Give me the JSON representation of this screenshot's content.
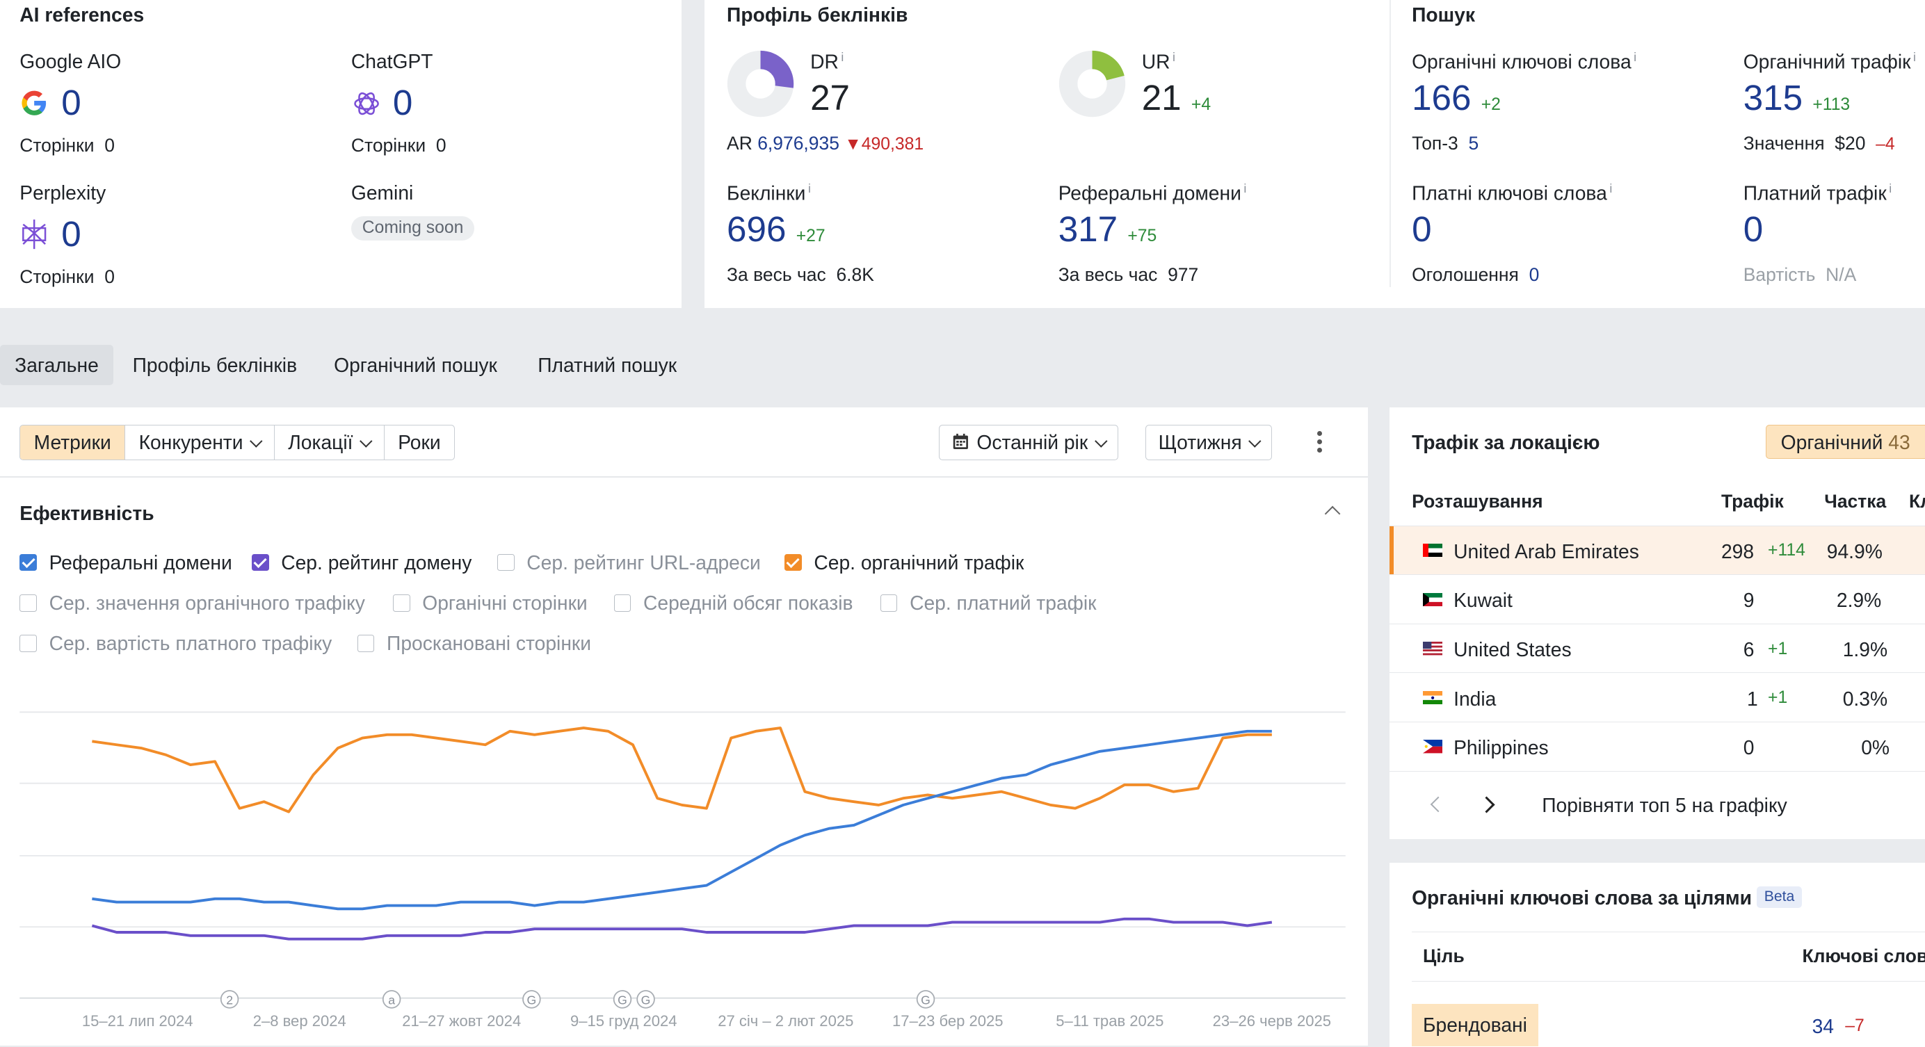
{
  "ai_references": {
    "title": "AI references",
    "google": {
      "label": "Google AIO",
      "value": "0",
      "pages_label": "Сторінки",
      "pages": "0"
    },
    "chatgpt": {
      "label": "ChatGPT",
      "value": "0",
      "pages_label": "Сторінки",
      "pages": "0"
    },
    "perplexity": {
      "label": "Perplexity",
      "value": "0",
      "pages_label": "Сторінки",
      "pages": "0"
    },
    "gemini": {
      "label": "Gemini",
      "badge": "Coming soon"
    }
  },
  "backlink_profile": {
    "title": "Профіль беклінків",
    "dr": {
      "label": "DR",
      "value": "27",
      "fraction": 0.27
    },
    "ur": {
      "label": "UR",
      "value": "21",
      "delta": "+4",
      "fraction": 0.21
    },
    "ar": {
      "label": "AR",
      "value": "6,976,935",
      "delta": "490,381"
    },
    "backlinks": {
      "label": "Беклінки",
      "value": "696",
      "delta": "+27",
      "all_time_label": "За весь час",
      "all_time": "6.8K"
    },
    "ref_domains": {
      "label": "Реферальні домени",
      "value": "317",
      "delta": "+75",
      "all_time_label": "За весь час",
      "all_time": "977"
    }
  },
  "search": {
    "title": "Пошук",
    "organic_kw": {
      "label": "Органічні ключові слова",
      "value": "166",
      "delta": "+2",
      "top3_label": "Топ-3",
      "top3": "5"
    },
    "organic_traffic": {
      "label": "Органічний трафік",
      "value": "315",
      "delta": "+113",
      "value_label": "Значення",
      "money": "$20",
      "money_delta": "–4"
    },
    "paid_kw": {
      "label": "Платні ключові слова",
      "value": "0",
      "ads_label": "Оголошення",
      "ads": "0"
    },
    "paid_traffic": {
      "label": "Платний трафік",
      "value": "0",
      "cost_label": "Вартість",
      "cost": "N/A"
    }
  },
  "tabs": [
    "Загальне",
    "Профіль беклінків",
    "Органічний пошук",
    "Платний пошук"
  ],
  "toolbar": {
    "segments": [
      "Метрики",
      "Конкуренти",
      "Локації",
      "Роки"
    ],
    "period": "Останній рік",
    "interval": "Щотижня"
  },
  "performance": {
    "title": "Ефективність",
    "checkboxes": [
      {
        "label": "Реферальні домени",
        "checked": true,
        "color": "#3b7dd8"
      },
      {
        "label": "Сер. рейтинг домену",
        "checked": true,
        "color": "#6a4fc9"
      },
      {
        "label": "Сер. рейтинг URL-адреси",
        "checked": false
      },
      {
        "label": "Сер. органічний трафік",
        "checked": true,
        "color": "#f28c28"
      },
      {
        "label": "Сер. значення органічного трафіку",
        "checked": false
      },
      {
        "label": "Органічні сторінки",
        "checked": false
      },
      {
        "label": "Середній обсяг показів",
        "checked": false
      },
      {
        "label": "Сер. платний трафік",
        "checked": false
      },
      {
        "label": "Сер. вартість платного трафіку",
        "checked": false
      },
      {
        "label": "Просканованi сторінки",
        "checked": false
      }
    ]
  },
  "chart_data": {
    "type": "line",
    "x_ticks": [
      "15–21 лип 2024",
      "2–8 вер 2024",
      "21–27 жовт 2024",
      "9–15 груд 2024",
      "27 січ – 2 лют 2025",
      "17–23 бер 2025",
      "5–11 трав 2025",
      "23–26 черв 2025"
    ],
    "annotations": [
      "2",
      "a",
      "G",
      "G",
      "G",
      "G"
    ],
    "series": [
      {
        "name": "Сер. органічний трафік",
        "color": "#f28c28",
        "values": [
          0.77,
          0.76,
          0.75,
          0.73,
          0.7,
          0.71,
          0.57,
          0.59,
          0.56,
          0.67,
          0.75,
          0.78,
          0.79,
          0.79,
          0.78,
          0.77,
          0.76,
          0.8,
          0.79,
          0.8,
          0.81,
          0.8,
          0.76,
          0.6,
          0.58,
          0.57,
          0.78,
          0.8,
          0.81,
          0.62,
          0.6,
          0.59,
          0.58,
          0.6,
          0.61,
          0.6,
          0.61,
          0.62,
          0.6,
          0.58,
          0.57,
          0.6,
          0.64,
          0.64,
          0.62,
          0.63,
          0.78,
          0.79,
          0.79
        ]
      },
      {
        "name": "Реферальні домени",
        "color": "#3b7dd8",
        "values": [
          0.3,
          0.29,
          0.29,
          0.29,
          0.29,
          0.3,
          0.3,
          0.29,
          0.29,
          0.28,
          0.27,
          0.27,
          0.28,
          0.28,
          0.28,
          0.29,
          0.29,
          0.29,
          0.28,
          0.29,
          0.29,
          0.3,
          0.31,
          0.32,
          0.33,
          0.34,
          0.38,
          0.42,
          0.46,
          0.49,
          0.51,
          0.52,
          0.55,
          0.58,
          0.6,
          0.62,
          0.64,
          0.66,
          0.67,
          0.7,
          0.72,
          0.74,
          0.75,
          0.76,
          0.77,
          0.78,
          0.79,
          0.8,
          0.8
        ]
      },
      {
        "name": "Сер. рейтинг домену",
        "color": "#6a4fc9",
        "values": [
          0.22,
          0.2,
          0.2,
          0.2,
          0.19,
          0.19,
          0.19,
          0.19,
          0.18,
          0.18,
          0.18,
          0.18,
          0.19,
          0.19,
          0.19,
          0.19,
          0.2,
          0.2,
          0.21,
          0.21,
          0.21,
          0.21,
          0.21,
          0.21,
          0.21,
          0.2,
          0.2,
          0.2,
          0.2,
          0.2,
          0.21,
          0.22,
          0.22,
          0.22,
          0.22,
          0.23,
          0.23,
          0.23,
          0.23,
          0.23,
          0.23,
          0.23,
          0.24,
          0.24,
          0.23,
          0.23,
          0.23,
          0.22,
          0.23
        ]
      }
    ]
  },
  "location_traffic": {
    "title": "Трафік за локацією",
    "filter": "Органічний",
    "filter_count": "43",
    "columns": [
      "Розташування",
      "Трафік",
      "Частка",
      "Кл"
    ],
    "rows": [
      {
        "country": "United Arab Emirates",
        "traffic": "298",
        "delta": "+114",
        "share": "94.9%"
      },
      {
        "country": "Kuwait",
        "traffic": "9",
        "delta": "",
        "share": "2.9%"
      },
      {
        "country": "United States",
        "traffic": "6",
        "delta": "+1",
        "share": "1.9%"
      },
      {
        "country": "India",
        "traffic": "1",
        "delta": "+1",
        "share": "0.3%"
      },
      {
        "country": "Philippines",
        "traffic": "0",
        "delta": "",
        "share": "0%"
      }
    ],
    "compare": "Порівняти топ 5 на графіку"
  },
  "intent_keywords": {
    "title": "Органічні ключові слова за цілями",
    "badge": "Beta",
    "col_goal": "Ціль",
    "col_keywords": "Ключові слов",
    "row_label": "Брендовані",
    "row_value": "34",
    "row_delta": "–7"
  }
}
